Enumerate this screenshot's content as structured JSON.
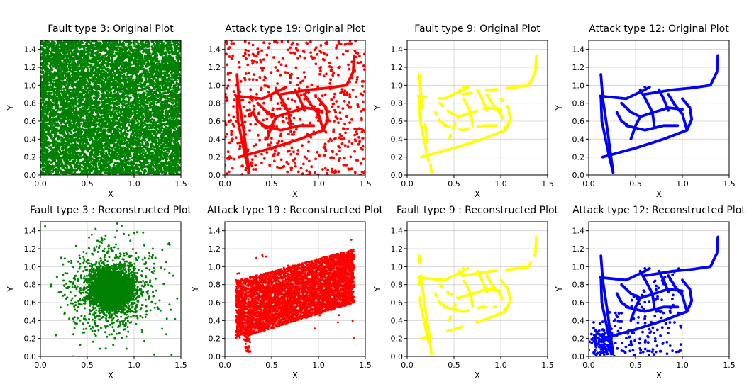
{
  "chart_data": [
    {
      "type": "scatter",
      "title": "Fault type 3: Original Plot",
      "xlabel": "X",
      "ylabel": "Y",
      "xlim": [
        0,
        1.5
      ],
      "ylim": [
        0,
        1.5
      ],
      "xticks": [
        "0.0",
        "0.5",
        "1.0",
        "1.5"
      ],
      "yticks": [
        "0.0",
        "0.2",
        "0.4",
        "0.6",
        "0.8",
        "1.0",
        "1.2",
        "1.4"
      ],
      "grid": true,
      "color": "#008000",
      "pattern": "uniform noise filling the full range",
      "series": [
        {
          "points": [
            [
              0.1,
              0.1
            ],
            [
              0.4,
              1.3
            ],
            [
              0.9,
              0.7
            ],
            [
              1.3,
              0.2
            ],
            [
              1.45,
              1.4
            ],
            [
              0.7,
              0.05
            ],
            [
              0.2,
              0.9
            ]
          ]
        }
      ]
    },
    {
      "type": "scatter",
      "title": "Attack type 19: Original Plot",
      "xlabel": "X",
      "ylabel": "",
      "xlim": [
        0,
        1.5
      ],
      "ylim": [
        0,
        1.5
      ],
      "xticks": [
        "0.0",
        "0.5",
        "1.0",
        "1.5"
      ],
      "yticks": [
        "0.0",
        "0.2",
        "0.4",
        "0.6",
        "0.8",
        "1.0",
        "1.2",
        "1.4"
      ],
      "grid": true,
      "color": "#ff0000",
      "pattern": "road network plus sparse random noise",
      "series": [
        {
          "points": [
            [
              0.13,
              0.88
            ],
            [
              0.25,
              0.03
            ],
            [
              0.15,
              0.2
            ],
            [
              0.95,
              0.48
            ],
            [
              1.38,
              1.3
            ],
            [
              0.6,
              0.95
            ],
            [
              1.05,
              0.55
            ]
          ]
        }
      ]
    },
    {
      "type": "scatter",
      "title": "Fault type 9: Original Plot",
      "xlabel": "X",
      "ylabel": "Y",
      "xlim": [
        0,
        1.5
      ],
      "ylim": [
        0,
        1.5
      ],
      "xticks": [
        "0.0",
        "0.5",
        "1.0",
        "1.5"
      ],
      "yticks": [
        "0.0",
        "0.2",
        "0.4",
        "0.6",
        "0.8",
        "1.0",
        "1.2",
        "1.4"
      ],
      "grid": true,
      "color": "#ffff00",
      "pattern": "road network with gaps",
      "series": [
        {
          "points": [
            [
              0.15,
              0.2
            ],
            [
              1.05,
              0.5
            ],
            [
              1.38,
              1.3
            ],
            [
              0.12,
              1.08
            ],
            [
              0.26,
              0.03
            ],
            [
              0.6,
              0.98
            ]
          ]
        }
      ]
    },
    {
      "type": "scatter",
      "title": "Attack type 12: Original Plot",
      "xlabel": "X",
      "ylabel": "Y",
      "xlim": [
        0,
        1.5
      ],
      "ylim": [
        0,
        1.5
      ],
      "xticks": [
        "0.0",
        "0.5",
        "1.0",
        "1.5"
      ],
      "yticks": [
        "0.0",
        "0.2",
        "0.4",
        "0.6",
        "0.8",
        "1.0",
        "1.2",
        "1.4"
      ],
      "grid": true,
      "color": "#0000ff",
      "pattern": "road network",
      "series": [
        {
          "points": [
            [
              0.15,
              0.2
            ],
            [
              1.05,
              0.5
            ],
            [
              1.38,
              1.33
            ],
            [
              0.13,
              1.12
            ],
            [
              0.26,
              0.03
            ],
            [
              0.6,
              0.98
            ]
          ]
        }
      ]
    },
    {
      "type": "scatter",
      "title": "Fault type 3 : Reconstructed Plot",
      "xlabel": "X",
      "ylabel": "Y",
      "xlim": [
        0,
        1.5
      ],
      "ylim": [
        0,
        1.5
      ],
      "xticks": [
        "0.0",
        "0.5",
        "1.0",
        "1.5"
      ],
      "yticks": [
        "0.0",
        "0.2",
        "0.4",
        "0.6",
        "0.8",
        "1.0",
        "1.2",
        "1.4"
      ],
      "grid": true,
      "color": "#008000",
      "pattern": "dense gaussian cloud centred near (0.75, 0.75)",
      "series": [
        {
          "points": [
            [
              0.75,
              0.75
            ],
            [
              0.05,
              1.45
            ],
            [
              1.4,
              0.02
            ],
            [
              0.35,
              0.0
            ],
            [
              1.2,
              1.2
            ]
          ]
        }
      ]
    },
    {
      "type": "scatter",
      "title": "Attack type 19 : Reconstructed Plot",
      "xlabel": "X",
      "ylabel": "Y",
      "xlim": [
        0,
        1.5
      ],
      "ylim": [
        0,
        1.5
      ],
      "xticks": [
        "0.0",
        "0.5",
        "1.0",
        "1.5"
      ],
      "yticks": [
        "0.0",
        "0.2",
        "0.4",
        "0.6",
        "0.8",
        "1.0",
        "1.2",
        "1.4"
      ],
      "grid": true,
      "color": "#ff0000",
      "pattern": "dense wedge between the lower road and the upper-right curve",
      "series": [
        {
          "points": [
            [
              0.25,
              0.05
            ],
            [
              0.12,
              0.85
            ],
            [
              1.35,
              1.3
            ],
            [
              1.38,
              0.2
            ],
            [
              0.8,
              0.75
            ]
          ]
        }
      ]
    },
    {
      "type": "scatter",
      "title": "Fault type 9 : Reconstructed Plot",
      "xlabel": "X",
      "ylabel": "Y",
      "xlim": [
        0,
        1.5
      ],
      "ylim": [
        0,
        1.5
      ],
      "xticks": [
        "0.0",
        "0.5",
        "1.0",
        "1.5"
      ],
      "yticks": [
        "0.0",
        "0.2",
        "0.4",
        "0.6",
        "0.8",
        "1.0",
        "1.2",
        "1.4"
      ],
      "grid": true,
      "color": "#ffff00",
      "pattern": "road network with gaps",
      "series": [
        {
          "points": [
            [
              0.15,
              0.2
            ],
            [
              1.05,
              0.5
            ],
            [
              1.38,
              1.3
            ],
            [
              0.12,
              1.08
            ],
            [
              0.26,
              0.03
            ],
            [
              0.6,
              0.98
            ]
          ]
        }
      ]
    },
    {
      "type": "scatter",
      "title": "Attack type 12: Reconstructed Plot",
      "xlabel": "X",
      "ylabel": "Y",
      "xlim": [
        0,
        1.5
      ],
      "ylim": [
        0,
        1.5
      ],
      "xticks": [
        "0.0",
        "0.5",
        "1.0",
        "1.5"
      ],
      "yticks": [
        "0.0",
        "0.2",
        "0.4",
        "0.6",
        "0.8",
        "1.0",
        "1.2",
        "1.4"
      ],
      "grid": true,
      "color": "#0000ff",
      "pattern": "road network plus scattered dots in the lower-left region",
      "series": [
        {
          "points": [
            [
              0.15,
              0.2
            ],
            [
              1.05,
              0.5
            ],
            [
              1.38,
              1.24
            ],
            [
              0.05,
              0.2
            ],
            [
              0.18,
              0.05
            ],
            [
              0.6,
              0.98
            ]
          ]
        }
      ]
    }
  ]
}
